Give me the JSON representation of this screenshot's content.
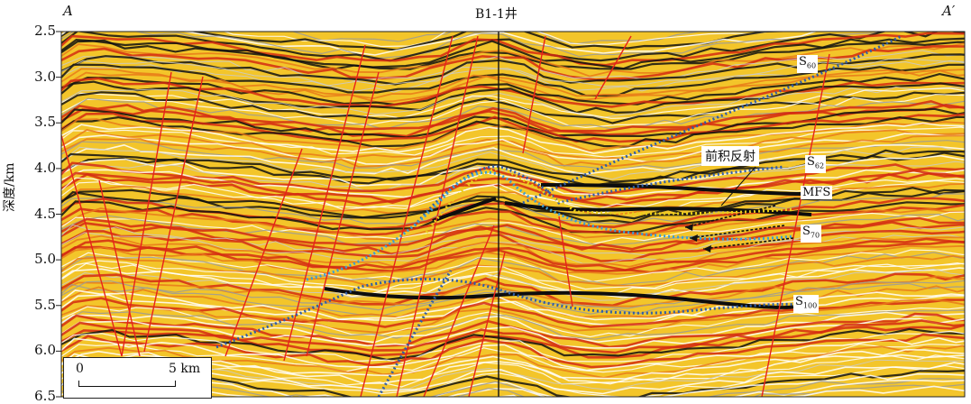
{
  "section": {
    "start_label": "A",
    "end_label": "A′",
    "well_label": "B1-1井",
    "y_axis_label": "深度/km",
    "y_ticks": [
      "2.5",
      "3.0",
      "3.5",
      "4.0",
      "4.5",
      "5.0",
      "5.5",
      "6.0",
      "6.5"
    ],
    "depth_range_km": [
      2.5,
      6.5
    ]
  },
  "horizons": {
    "s60": {
      "main": "S",
      "sub": "60"
    },
    "s62": {
      "main": "S",
      "sub": "62"
    },
    "mfs": "MFS",
    "s70": {
      "main": "S",
      "sub": "70"
    },
    "s100": {
      "main": "S",
      "sub": "100"
    }
  },
  "annotation": "前积反射",
  "scale_bar": {
    "zero": "0",
    "length": "5 km"
  },
  "colors": {
    "fault": "#e8201a",
    "peak": "#d42a12",
    "trough": "#111111",
    "background": "#f4c21d",
    "horizon_blue": "#2f5da8",
    "horizon_cyan": "#3a9fd6",
    "horizon_yellow": "#e9cf1a"
  }
}
